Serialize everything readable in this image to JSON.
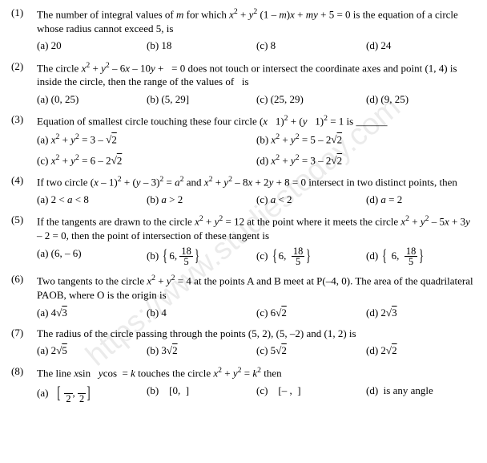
{
  "watermark": "https://www.studiestoday.com",
  "questions": [
    {
      "num": "(1)",
      "text": "The number of integral values of <i>m</i> for which <i>x</i><span class='sup'>2</span> + <i>y</i><span class='sup'>2</span> (1 – <i>m</i>)<i>x</i> + <i>my</i> + 5 = 0 is the equation of a circle whose radius cannot exceed 5, is",
      "a": "(a) 20",
      "b": "(b) 18",
      "c": "(c) 8",
      "d": "(d) 24"
    },
    {
      "num": "(2)",
      "text": "The circle <i>x</i><span class='sup'>2</span> + <i>y</i><span class='sup'>2</span> – 6<i>x</i> – 10<i>y</i> + &nbsp;&nbsp;= 0 does not touch or intersect the coordinate axes and point (1, 4) is inside the circle, then the range of the values of &nbsp;&nbsp;is",
      "a": "(a) (0, 25)",
      "b": "(b) (5, 29]",
      "c": "(c) (25, 29)",
      "d": "(d) (9, 25)"
    },
    {
      "num": "(3)",
      "text": "Equation of smallest circle touching these four circle (<i>x</i>&nbsp;&nbsp;&nbsp;1)<span class='sup'>2</span> + (<i>y</i>&nbsp;&nbsp;&nbsp;1)<span class='sup'>2</span> = 1 is ______",
      "a": "(a) <i>x</i><span class='sup'>2</span> + <i>y</i><span class='sup'>2</span> = 3 – <span class='rad'></span><span class='sqrt'>2</span>",
      "b": "(b) <i>x</i><span class='sup'>2</span> + <i>y</i><span class='sup'>2</span> = 5 – 2<span class='rad'></span><span class='sqrt'>2</span>",
      "c": "(c) <i>x</i><span class='sup'>2</span> + <i>y</i><span class='sup'>2</span> = 6 – 2<span class='rad'></span><span class='sqrt'>2</span>",
      "d": "(d) <i>x</i><span class='sup'>2</span> + <i>y</i><span class='sup'>2</span> = 3 – 2<span class='rad'></span><span class='sqrt'>2</span>",
      "twoCol": true
    },
    {
      "num": "(4)",
      "text": "If two circle (<i>x</i> – 1)<span class='sup'>2</span> + (<i>y</i> – 3)<span class='sup'>2</span> = <i>a</i><span class='sup'>2</span> and <i>x</i><span class='sup'>2</span> + <i>y</i><span class='sup'>2</span> – 8<i>x</i> + 2<i>y</i> + 8 = 0 intersect in two distinct points, then",
      "a": "(a) 2 < <i>a</i> < 8",
      "b": "(b) <i>a</i> > 2",
      "c": "(c) <i>a</i> < 2",
      "d": "(d) <i>a</i> = 2"
    },
    {
      "num": "(5)",
      "text": "If the tangents are drawn to the circle <i>x</i><span class='sup'>2</span> + <i>y</i><span class='sup'>2</span> = 12 at the point where it meets the circle <i>x</i><span class='sup'>2</span> + <i>y</i><span class='sup'>2</span> – 5<i>x</i> + 3<i>y</i> – 2 = 0, then the point of intersection of these tangent is",
      "a": "(a) (6, – 6)",
      "b": "(b) <span class='brk'>{</span>6, <span class='frac'><span class='n'>18</span><span class='d'>5</span></span><span class='brk'>}</span>",
      "c": "(c) <span class='brk'>{</span>6, &nbsp;<span class='frac'><span class='n'>18</span><span class='d'>5</span></span><span class='brk'>}</span>",
      "d": "(d) <span class='brk'>{</span>&nbsp;6, &nbsp;<span class='frac'><span class='n'>18</span><span class='d'>5</span></span><span class='brk'>}</span>"
    },
    {
      "num": "(6)",
      "text": "Two tangents to the circle <i>x</i><span class='sup'>2</span> + <i>y</i><span class='sup'>2</span> = 4 at the points A and B meet at P(–4, 0). The area of the quadrilateral PAOB, where O is the origin is",
      "a": "(a) 4<span class='rad'></span><span class='sqrt'>3</span>",
      "b": "(b) 4",
      "c": "(c) 6<span class='rad'></span><span class='sqrt'>2</span>",
      "d": "(d) 2<span class='rad'></span><span class='sqrt'>3</span>"
    },
    {
      "num": "(7)",
      "text": "The radius of the circle passing through the points (5, 2), (5, –2) and (1, 2) is",
      "a": "(a) 2<span class='rad'></span><span class='sqrt'>5</span>",
      "b": "(b) 3<span class='rad'></span><span class='sqrt'>2</span>",
      "c": "(c) 5<span class='rad'></span><span class='sqrt'>2</span>",
      "d": "(d) 2<span class='rad'></span><span class='sqrt'>2</span>"
    },
    {
      "num": "(8)",
      "text": "The line <i>x</i>sin&nbsp;&nbsp;&nbsp;<i>y</i>cos&nbsp;&nbsp;= <i>k</i> touches the circle <i>x</i><span class='sup'>2</span> + <i>y</i><span class='sup'>2</span> = <i>k</i><span class='sup'>2</span> then",
      "a": "(a) &nbsp;&nbsp;<span class='brk'>[</span>&nbsp;<span class='frac'><span class='n'>&nbsp;</span><span class='d'>2</span></span>, <span class='frac'><span class='n'>&nbsp;</span><span class='d'>2</span></span><span class='brk'>]</span>",
      "b": "(b) &nbsp;&nbsp;&nbsp;[0,&nbsp;&nbsp;]",
      "c": "(c) &nbsp;&nbsp;&nbsp;[–&nbsp;,&nbsp;&nbsp;]",
      "d": "(d) &nbsp;is any angle"
    }
  ]
}
